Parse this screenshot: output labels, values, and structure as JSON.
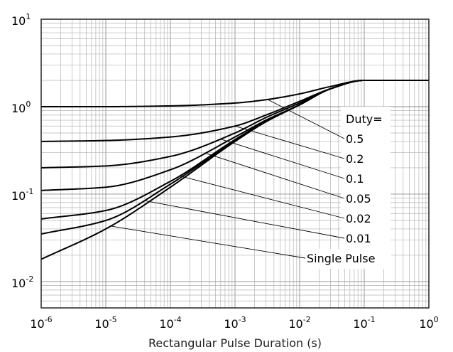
{
  "chart_data": {
    "type": "line",
    "title": "",
    "xlabel": "Rectangular Pulse Duration (s)",
    "ylabel": "",
    "xscale": "log",
    "yscale": "log",
    "xlim": [
      1e-06,
      1
    ],
    "ylim": [
      0.005,
      10
    ],
    "grid": true,
    "x_ticks": [
      {
        "base": "10",
        "exp": "-6"
      },
      {
        "base": "10",
        "exp": "-5"
      },
      {
        "base": "10",
        "exp": "-4"
      },
      {
        "base": "10",
        "exp": "-3"
      },
      {
        "base": "10",
        "exp": "-2"
      },
      {
        "base": "10",
        "exp": "-1"
      },
      {
        "base": "10",
        "exp": "0"
      }
    ],
    "y_ticks": [
      {
        "base": "10",
        "exp": "1"
      },
      {
        "base": "10",
        "exp": "0"
      },
      {
        "base": "10",
        "exp": "-1"
      },
      {
        "base": "10",
        "exp": "-2"
      }
    ],
    "legend_title": "Duty=",
    "series": [
      {
        "name": "0.5",
        "x": [
          1e-06,
          1e-05,
          0.0001,
          0.001,
          0.003,
          0.01,
          0.03,
          0.1,
          1
        ],
        "y": [
          1.0,
          1.0,
          1.02,
          1.1,
          1.2,
          1.4,
          1.7,
          2.0,
          2.0
        ]
      },
      {
        "name": "0.2",
        "x": [
          1e-06,
          1e-05,
          0.0001,
          0.001,
          0.003,
          0.01,
          0.03,
          0.1,
          1
        ],
        "y": [
          0.4,
          0.41,
          0.45,
          0.6,
          0.8,
          1.15,
          1.6,
          2.0,
          2.0
        ]
      },
      {
        "name": "0.1",
        "x": [
          1e-06,
          1e-05,
          0.0001,
          0.001,
          0.003,
          0.01,
          0.03,
          0.1,
          1
        ],
        "y": [
          0.2,
          0.21,
          0.27,
          0.5,
          0.75,
          1.1,
          1.6,
          2.0,
          2.0
        ]
      },
      {
        "name": "0.05",
        "x": [
          1e-06,
          1e-05,
          0.0001,
          0.001,
          0.003,
          0.01,
          0.03,
          0.1,
          1
        ],
        "y": [
          0.11,
          0.12,
          0.19,
          0.45,
          0.7,
          1.05,
          1.6,
          2.0,
          2.0
        ]
      },
      {
        "name": "0.02",
        "x": [
          1e-06,
          1e-05,
          0.0001,
          0.001,
          0.003,
          0.01,
          0.03,
          0.1,
          1
        ],
        "y": [
          0.052,
          0.065,
          0.14,
          0.42,
          0.68,
          1.05,
          1.6,
          2.0,
          2.0
        ]
      },
      {
        "name": "0.01",
        "x": [
          1e-06,
          1e-05,
          0.0001,
          0.001,
          0.003,
          0.01,
          0.03,
          0.1,
          1
        ],
        "y": [
          0.035,
          0.05,
          0.13,
          0.41,
          0.68,
          1.05,
          1.6,
          2.0,
          2.0
        ]
      },
      {
        "name": "Single Pulse",
        "x": [
          1e-06,
          1e-05,
          0.0001,
          0.001,
          0.003,
          0.01,
          0.03,
          0.1,
          1
        ],
        "y": [
          0.018,
          0.04,
          0.12,
          0.4,
          0.67,
          1.05,
          1.6,
          2.0,
          2.0
        ]
      }
    ]
  }
}
